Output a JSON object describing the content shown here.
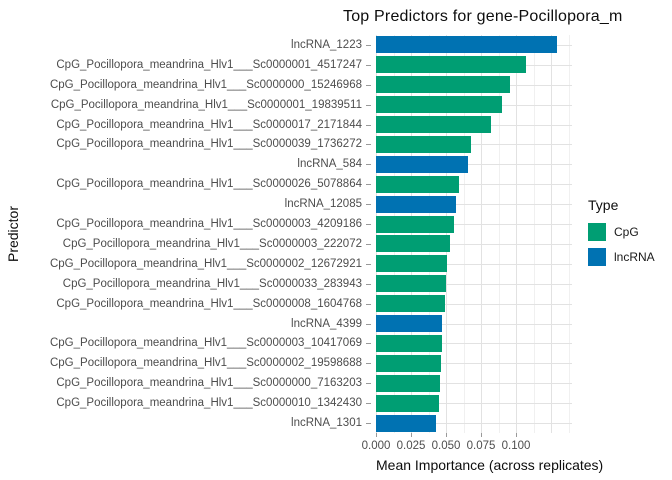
{
  "title": "Top Predictors for gene-Pocillopora_m",
  "axes": {
    "x_label": "Mean Importance (across replicates)",
    "y_label": "Predictor",
    "x_ticks": [
      {
        "label": "0.000",
        "value": 0.0
      },
      {
        "label": "0.025",
        "value": 0.025
      },
      {
        "label": "0.050",
        "value": 0.05
      },
      {
        "label": "0.075",
        "value": 0.075
      },
      {
        "label": "0.100",
        "value": 0.1
      }
    ]
  },
  "legend": {
    "title": "Type",
    "entries": [
      {
        "label": "CpG",
        "color": "#009E73"
      },
      {
        "label": "lncRNA",
        "color": "#0072B2"
      }
    ]
  },
  "colors": {
    "CpG": "#009E73",
    "lncRNA": "#0072B2",
    "grid_major": "#e2e2e2",
    "grid_minor": "#f0f0f0",
    "axis_text": "#4d4d4d"
  },
  "chart_data": {
    "type": "bar",
    "orientation": "horizontal",
    "title": "Top Predictors for gene-Pocillopora_m",
    "xlabel": "Mean Importance (across replicates)",
    "ylabel": "Predictor",
    "xlim": [
      0,
      0.14
    ],
    "grid": true,
    "legend_position": "right",
    "minor_step": 0.0125,
    "rows": [
      {
        "label": "lncRNA_1223",
        "type": "lncRNA",
        "value": 0.129
      },
      {
        "label": "CpG_Pocillopora_meandrina_Hlv1___Sc0000001_4517247",
        "type": "CpG",
        "value": 0.107
      },
      {
        "label": "CpG_Pocillopora_meandrina_Hlv1___Sc0000000_15246968",
        "type": "CpG",
        "value": 0.096
      },
      {
        "label": "CpG_Pocillopora_meandrina_Hlv1___Sc0000001_19839511",
        "type": "CpG",
        "value": 0.09
      },
      {
        "label": "CpG_Pocillopora_meandrina_Hlv1___Sc0000017_2171844",
        "type": "CpG",
        "value": 0.082
      },
      {
        "label": "CpG_Pocillopora_meandrina_Hlv1___Sc0000039_1736272",
        "type": "CpG",
        "value": 0.068
      },
      {
        "label": "lncRNA_584",
        "type": "lncRNA",
        "value": 0.066
      },
      {
        "label": "CpG_Pocillopora_meandrina_Hlv1___Sc0000026_5078864",
        "type": "CpG",
        "value": 0.0595
      },
      {
        "label": "lncRNA_12085",
        "type": "lncRNA",
        "value": 0.057
      },
      {
        "label": "CpG_Pocillopora_meandrina_Hlv1___Sc0000003_4209186",
        "type": "CpG",
        "value": 0.0558
      },
      {
        "label": "CpG_Pocillopora_meandrina_Hlv1___Sc0000003_222072",
        "type": "CpG",
        "value": 0.053
      },
      {
        "label": "CpG_Pocillopora_meandrina_Hlv1___Sc0000002_12672921",
        "type": "CpG",
        "value": 0.0508
      },
      {
        "label": "CpG_Pocillopora_meandrina_Hlv1___Sc0000033_283943",
        "type": "CpG",
        "value": 0.0502
      },
      {
        "label": "CpG_Pocillopora_meandrina_Hlv1___Sc0000008_1604768",
        "type": "CpG",
        "value": 0.0495
      },
      {
        "label": "lncRNA_4399",
        "type": "lncRNA",
        "value": 0.0472
      },
      {
        "label": "CpG_Pocillopora_meandrina_Hlv1___Sc0000003_10417069",
        "type": "CpG",
        "value": 0.047
      },
      {
        "label": "CpG_Pocillopora_meandrina_Hlv1___Sc0000002_19598688",
        "type": "CpG",
        "value": 0.0462
      },
      {
        "label": "CpG_Pocillopora_meandrina_Hlv1___Sc0000000_7163203",
        "type": "CpG",
        "value": 0.0458
      },
      {
        "label": "CpG_Pocillopora_meandrina_Hlv1___Sc0000010_1342430",
        "type": "CpG",
        "value": 0.045
      },
      {
        "label": "lncRNA_1301",
        "type": "lncRNA",
        "value": 0.0428
      }
    ]
  }
}
